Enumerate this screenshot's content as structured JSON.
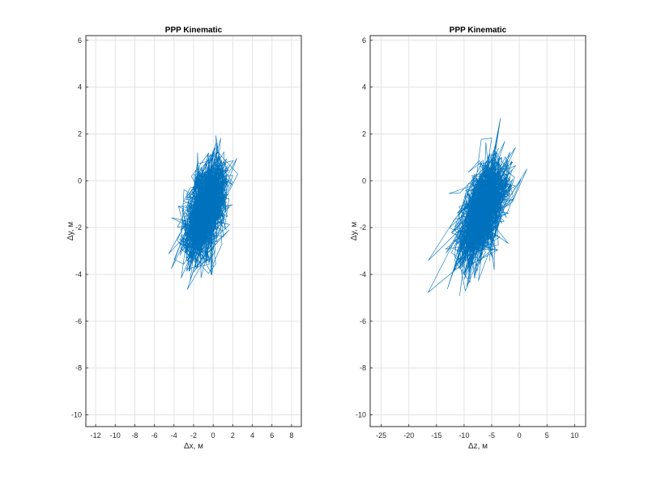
{
  "chart_data": [
    {
      "type": "line",
      "title": "PPP Kinematic",
      "xlabel": "Δx, м",
      "ylabel": "Δy, м",
      "xlim": [
        -13,
        9
      ],
      "ylim": [
        -10.5,
        6.2
      ],
      "xticks": [
        -12,
        -10,
        -8,
        -6,
        -4,
        -2,
        0,
        2,
        4,
        6,
        8
      ],
      "yticks": [
        -10,
        -8,
        -6,
        -4,
        -2,
        0,
        2,
        4,
        6
      ],
      "xtick_labels": [
        "-12",
        "-10",
        "-8",
        "-6",
        "-4",
        "-2",
        "0",
        "2",
        "4",
        "6",
        "8"
      ],
      "ytick_labels": [
        "-10",
        "-8",
        "-6",
        "-4",
        "-2",
        "0",
        "2",
        "4",
        "6"
      ],
      "grid": true,
      "series": [
        {
          "color": "#0072bd",
          "cloud": {
            "center": [
              -0.7,
              -1.2
            ],
            "sigma_x": 1.6,
            "sigma_y": 1.3,
            "tilt_dy_per_dx": 0.45,
            "x_range": [
              -6,
              4
            ],
            "y_range": [
              -5.8,
              2.7
            ],
            "n_points": 1500
          }
        }
      ]
    },
    {
      "type": "line",
      "title": "PPP Kinematic",
      "xlabel": "Δz, м",
      "ylabel": "Δy, м",
      "xlim": [
        -27,
        12
      ],
      "ylim": [
        -10.5,
        6.2
      ],
      "xticks": [
        -25,
        -20,
        -15,
        -10,
        -5,
        0,
        5,
        10
      ],
      "yticks": [
        -10,
        -8,
        -6,
        -4,
        -2,
        0,
        2,
        4,
        6
      ],
      "xtick_labels": [
        "-25",
        "-20",
        "-15",
        "-10",
        "-5",
        "0",
        "5",
        "10"
      ],
      "ytick_labels": [
        "-10",
        "-8",
        "-6",
        "-4",
        "-2",
        "0",
        "2",
        "4",
        "6"
      ],
      "grid": true,
      "series": [
        {
          "color": "#0072bd",
          "cloud": {
            "center": [
              -6.5,
              -1.3
            ],
            "sigma_x": 3.2,
            "sigma_y": 1.3,
            "tilt_dy_per_dx": 0.28,
            "x_range": [
              -16.5,
              2.5
            ],
            "y_range": [
              -5.8,
              2.7
            ],
            "n_points": 1500
          }
        }
      ]
    }
  ]
}
